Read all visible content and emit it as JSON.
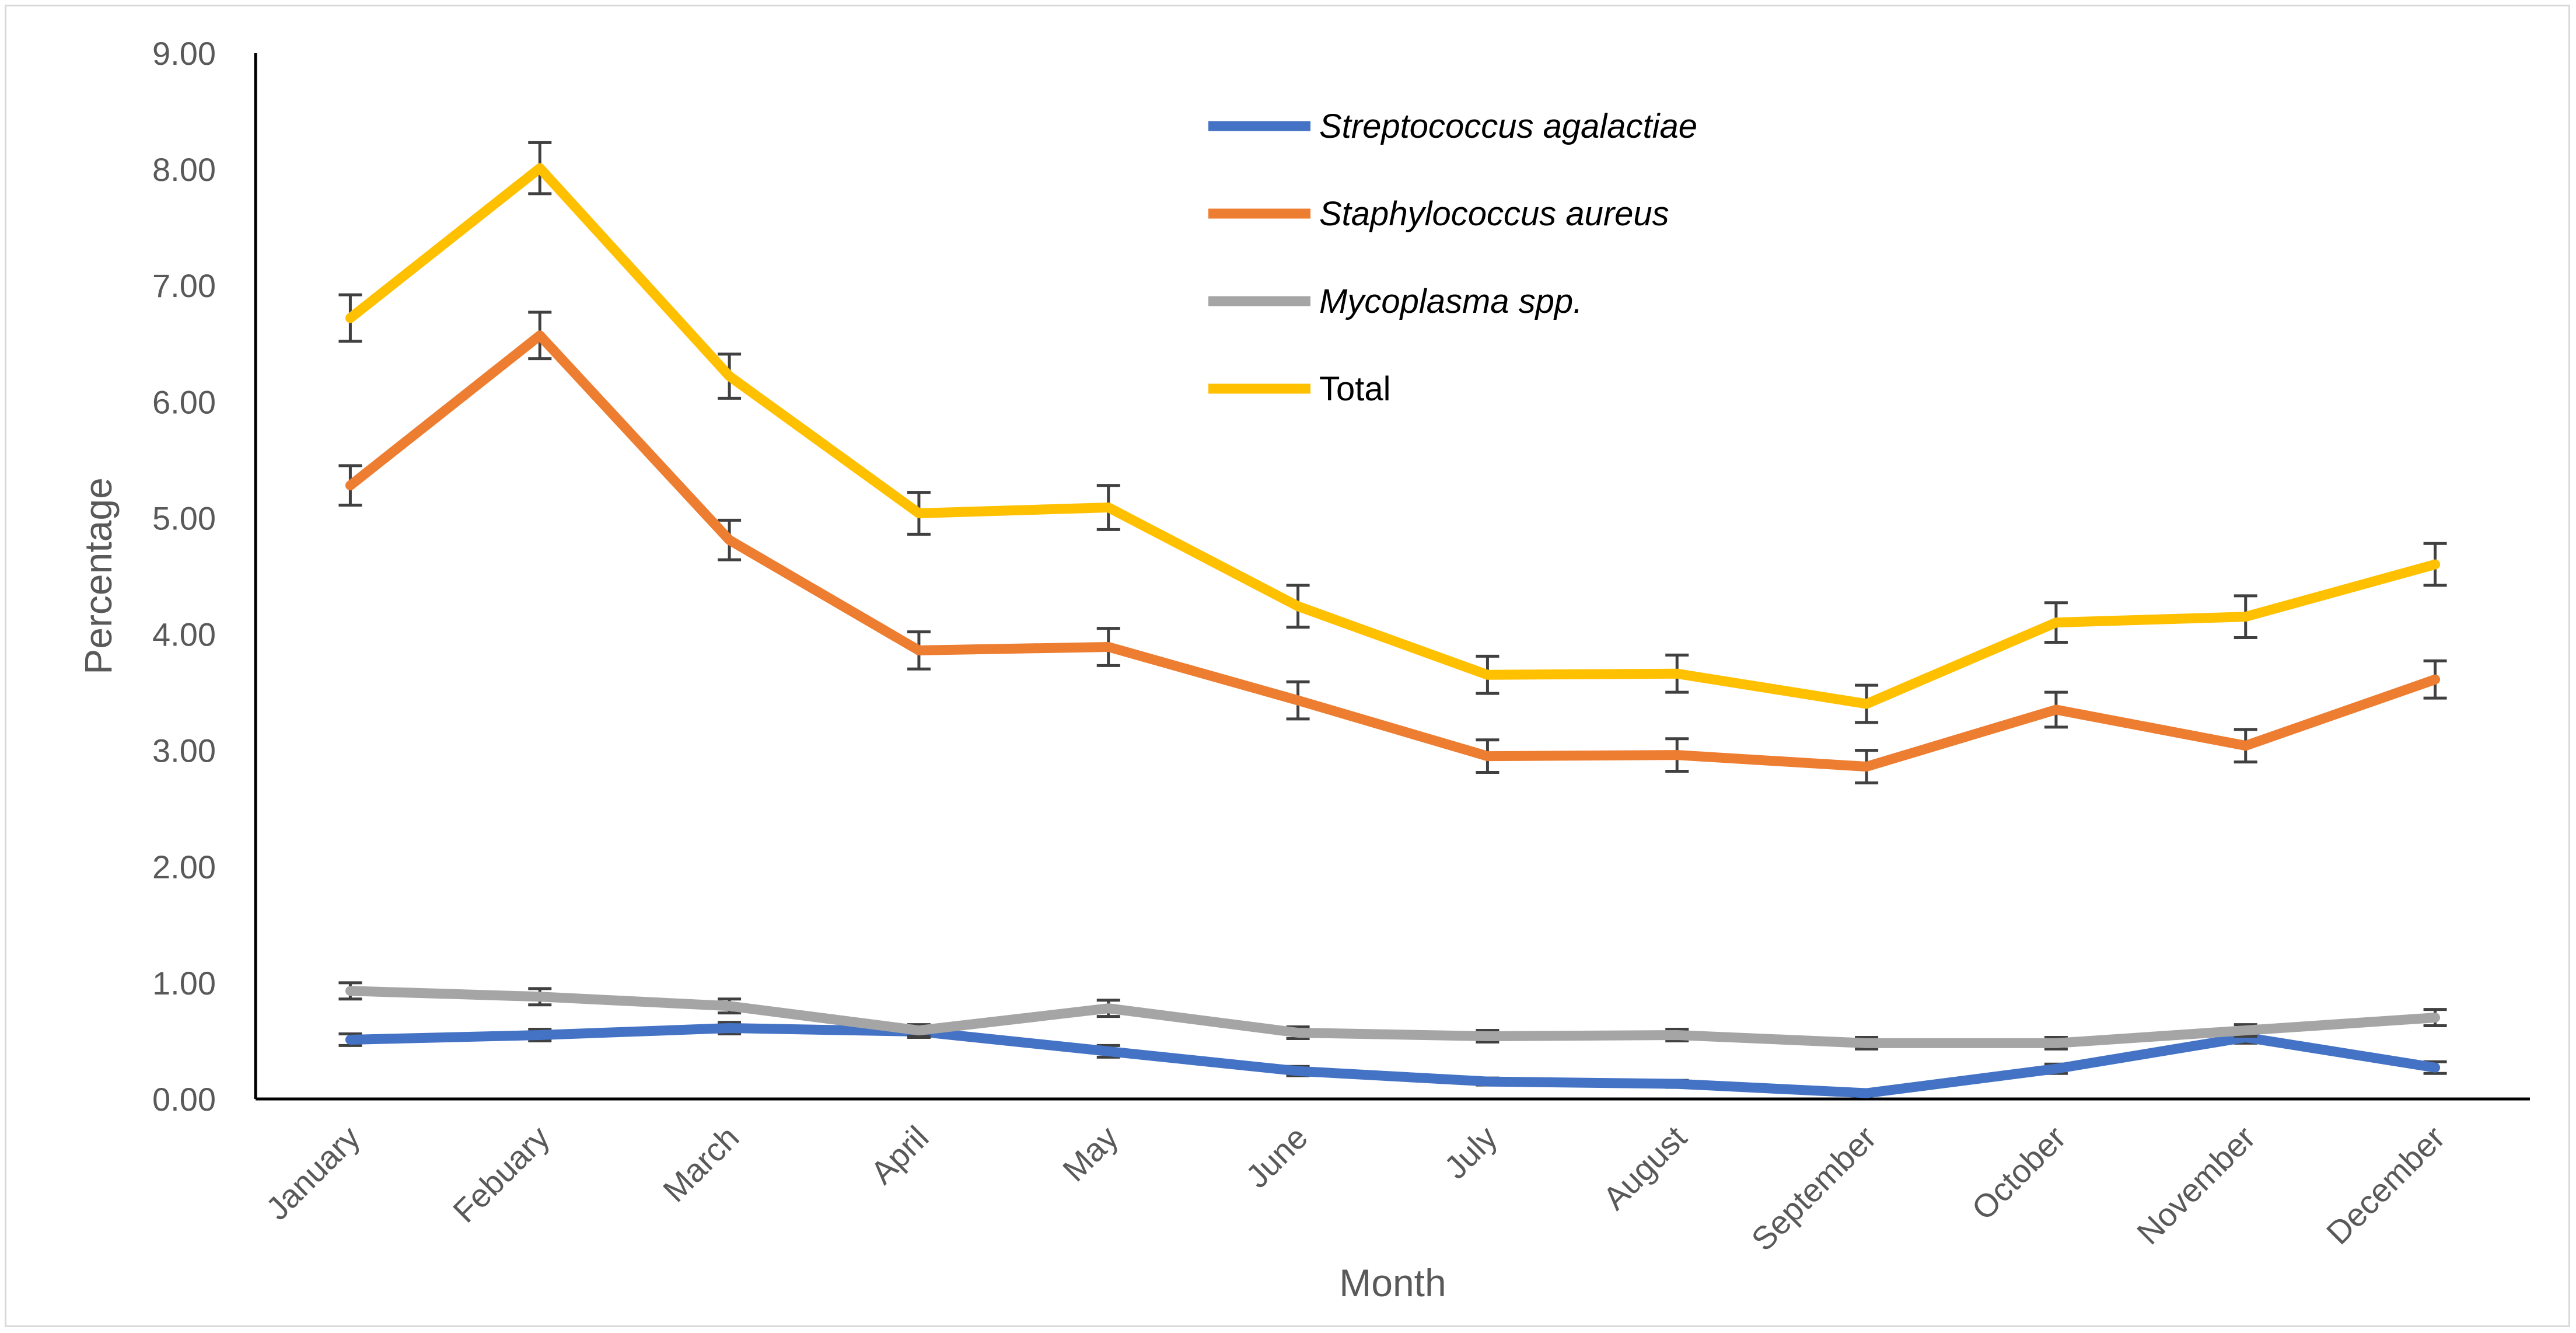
{
  "chart_data": {
    "type": "line",
    "title": "",
    "xlabel": "Month",
    "ylabel": "Percentage",
    "categories": [
      "January",
      "Febuary",
      "March",
      "April",
      "May",
      "June",
      "July",
      "August",
      "September",
      "October",
      "November",
      "December"
    ],
    "ylim": [
      0,
      9
    ],
    "yticks": [
      "0.00",
      "1.00",
      "2.00",
      "3.00",
      "4.00",
      "5.00",
      "6.00",
      "7.00",
      "8.00",
      "9.00"
    ],
    "grid": false,
    "legend_position": "top-center",
    "error_bars": true,
    "series": [
      {
        "name": "Streptococcus agalactiae",
        "italic": true,
        "color": "#4472C4",
        "values": [
          0.51,
          0.55,
          0.61,
          0.58,
          0.41,
          0.24,
          0.15,
          0.13,
          0.05,
          0.26,
          0.53,
          0.27
        ],
        "errors": [
          0.05,
          0.05,
          0.05,
          0.05,
          0.05,
          0.04,
          0.03,
          0.03,
          0.02,
          0.04,
          0.05,
          0.05
        ]
      },
      {
        "name": "Staphylococcus aureus",
        "italic": true,
        "color": "#ED7D31",
        "values": [
          5.28,
          6.57,
          4.81,
          3.86,
          3.89,
          3.43,
          2.95,
          2.96,
          2.86,
          3.35,
          3.04,
          3.61
        ],
        "errors": [
          0.17,
          0.2,
          0.17,
          0.16,
          0.16,
          0.16,
          0.14,
          0.14,
          0.14,
          0.15,
          0.14,
          0.16
        ]
      },
      {
        "name": "Mycoplasma spp.",
        "italic": true,
        "color": "#A5A5A5",
        "values": [
          0.93,
          0.88,
          0.8,
          0.59,
          0.78,
          0.57,
          0.54,
          0.55,
          0.48,
          0.48,
          0.59,
          0.7
        ],
        "errors": [
          0.07,
          0.07,
          0.06,
          0.05,
          0.07,
          0.05,
          0.05,
          0.05,
          0.05,
          0.05,
          0.05,
          0.07
        ]
      },
      {
        "name": "Total",
        "italic": false,
        "color": "#FFC000",
        "values": [
          6.72,
          8.01,
          6.22,
          5.04,
          5.09,
          4.24,
          3.65,
          3.66,
          3.4,
          4.1,
          4.15,
          4.6
        ],
        "errors": [
          0.2,
          0.22,
          0.19,
          0.18,
          0.19,
          0.18,
          0.16,
          0.16,
          0.16,
          0.17,
          0.18,
          0.18
        ]
      }
    ]
  }
}
